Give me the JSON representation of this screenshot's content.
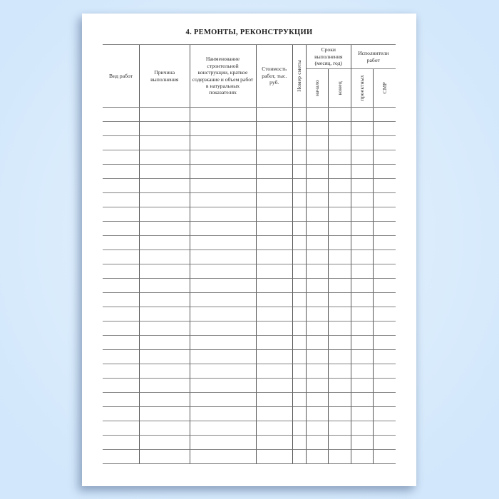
{
  "title": "4. РЕМОНТЫ, РЕКОНСТРУКЦИИ",
  "table": {
    "header": {
      "columns": [
        {
          "id": "vid-rabot",
          "label": "Вид работ",
          "vertical": false
        },
        {
          "id": "prichina-vypolneniya",
          "label": "Причина выполнения",
          "vertical": false
        },
        {
          "id": "naimenovanie",
          "label": "Наименование строительной конструкции, краткое содержание и объем работ в натуральных показателях",
          "vertical": false
        },
        {
          "id": "stoimost",
          "label": "Стоимость работ, тыс. руб.",
          "vertical": false
        },
        {
          "id": "nomer-smety",
          "label": "Номер сметы",
          "vertical": true
        },
        {
          "id": "sroki-vypolneniya",
          "label": "Сроки выполнения (месяц, год)",
          "children": [
            {
              "id": "nachalo",
              "label": "начало",
              "vertical": true
            },
            {
              "id": "konets",
              "label": "конец",
              "vertical": true
            }
          ]
        },
        {
          "id": "ispolniteli-rabot",
          "label": "Исполнители работ",
          "children": [
            {
              "id": "proektnykh",
              "label": "проектных",
              "vertical": true
            },
            {
              "id": "smr",
              "label": "СМР",
              "vertical": true
            }
          ]
        }
      ]
    },
    "body": {
      "row_count": 25,
      "column_count": 9,
      "cells": "empty"
    }
  },
  "colors": {
    "desktop_background": "#d3e8fc",
    "page_background": "#ffffff",
    "grid_line": "#828282",
    "divider_line": "#555555",
    "text": "#2b2b2b"
  }
}
